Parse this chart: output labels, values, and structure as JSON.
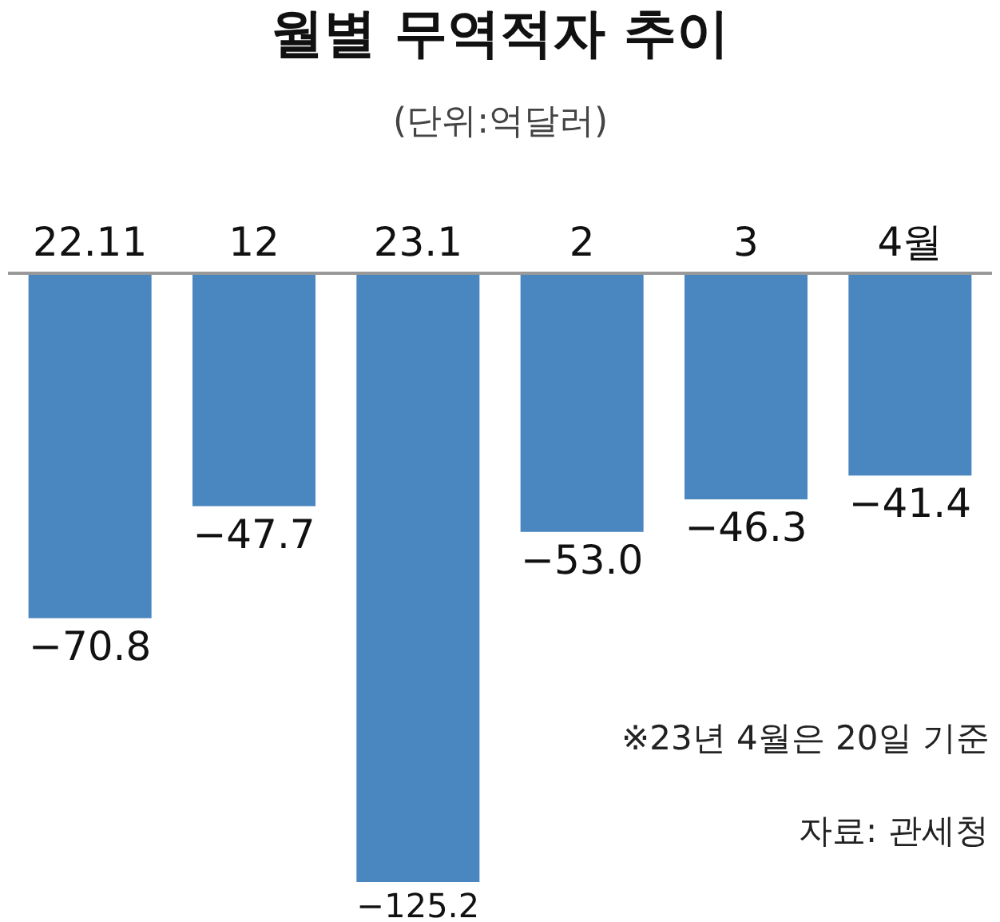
{
  "chart_data": {
    "type": "bar",
    "title": "월별 무역적자 추이",
    "subtitle": "(단위:억달러)",
    "categories": [
      "22.11",
      "12",
      "23.1",
      "2",
      "3",
      "4월"
    ],
    "values": [
      -70.8,
      -47.7,
      -125.2,
      -53.0,
      -46.3,
      -41.4
    ],
    "value_labels": [
      "−70.8",
      "−47.7",
      "−125.2",
      "−53.0",
      "−46.3",
      "−41.4"
    ],
    "color": "#4a86bf",
    "legend": false,
    "annotations": [
      "※23년 4월은 20일 기준",
      "자료: 관세청"
    ]
  }
}
